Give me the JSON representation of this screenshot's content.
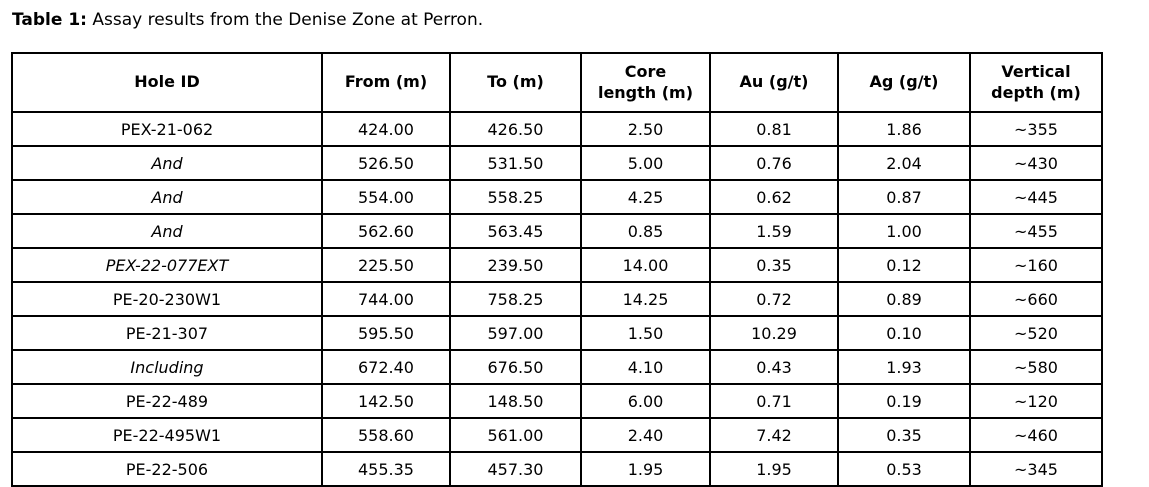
{
  "caption": {
    "label": "Table 1:",
    "text": " Assay results from the Denise Zone at Perron."
  },
  "table": {
    "columns": [
      "Hole ID",
      "From (m)",
      "To (m)",
      "Core\nlength (m)",
      "Au (g/t)",
      "Ag (g/t)",
      "Vertical\ndepth (m)"
    ],
    "rows": [
      {
        "hole_id": "PEX-21-062",
        "style": "bold",
        "from": "424.00",
        "to": "426.50",
        "core_length": "2.50",
        "au": "0.81",
        "ag": "1.86",
        "vertical_depth": "~355"
      },
      {
        "hole_id": "And",
        "style": "italic",
        "from": "526.50",
        "to": "531.50",
        "core_length": "5.00",
        "au": "0.76",
        "ag": "2.04",
        "vertical_depth": "~430"
      },
      {
        "hole_id": "And",
        "style": "italic",
        "from": "554.00",
        "to": "558.25",
        "core_length": "4.25",
        "au": "0.62",
        "ag": "0.87",
        "vertical_depth": "~445"
      },
      {
        "hole_id": "And",
        "style": "italic",
        "from": "562.60",
        "to": "563.45",
        "core_length": "0.85",
        "au": "1.59",
        "ag": "1.00",
        "vertical_depth": "~455"
      },
      {
        "hole_id": "PEX-22-077EXT",
        "style": "bold-italic",
        "from": "225.50",
        "to": "239.50",
        "core_length": "14.00",
        "au": "0.35",
        "ag": "0.12",
        "vertical_depth": "~160"
      },
      {
        "hole_id": "PE-20-230W1",
        "style": "bold",
        "from": "744.00",
        "to": "758.25",
        "core_length": "14.25",
        "au": "0.72",
        "ag": "0.89",
        "vertical_depth": "~660"
      },
      {
        "hole_id": "PE-21-307",
        "style": "bold",
        "from": "595.50",
        "to": "597.00",
        "core_length": "1.50",
        "au": "10.29",
        "ag": "0.10",
        "vertical_depth": "~520"
      },
      {
        "hole_id": "Including",
        "style": "italic",
        "from": "672.40",
        "to": "676.50",
        "core_length": "4.10",
        "au": "0.43",
        "ag": "1.93",
        "vertical_depth": "~580"
      },
      {
        "hole_id": "PE-22-489",
        "style": "bold",
        "from": "142.50",
        "to": "148.50",
        "core_length": "6.00",
        "au": "0.71",
        "ag": "0.19",
        "vertical_depth": "~120"
      },
      {
        "hole_id": "PE-22-495W1",
        "style": "bold",
        "from": "558.60",
        "to": "561.00",
        "core_length": "2.40",
        "au": "7.42",
        "ag": "0.35",
        "vertical_depth": "~460"
      },
      {
        "hole_id": "PE-22-506",
        "style": "bold",
        "from": "455.35",
        "to": "457.30",
        "core_length": "1.95",
        "au": "1.95",
        "ag": "0.53",
        "vertical_depth": "~345"
      }
    ]
  },
  "colors": {
    "text": "#000000",
    "border": "#000000",
    "background": "#ffffff"
  }
}
